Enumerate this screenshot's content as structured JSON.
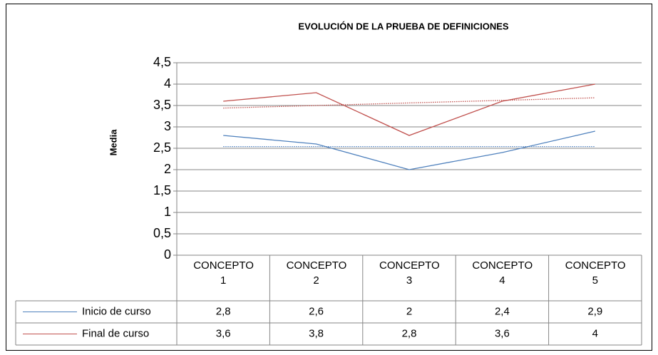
{
  "chart_data": {
    "type": "line",
    "title": "EVOLUCIÓN DE LA PRUEBA DE DEFINICIONES",
    "ylabel": "Media",
    "categories": [
      "CONCEPTO 1",
      "CONCEPTO 2",
      "CONCEPTO 3",
      "CONCEPTO 4",
      "CONCEPTO 5"
    ],
    "series": [
      {
        "name": "Inicio de curso",
        "color": "#4f81bd",
        "values": [
          2.8,
          2.6,
          2,
          2.4,
          2.9
        ],
        "value_labels": [
          "2,8",
          "2,6",
          "2",
          "2,4",
          "2,9"
        ],
        "trendline": true
      },
      {
        "name": "Final de curso",
        "color": "#c0504d",
        "values": [
          3.6,
          3.8,
          2.8,
          3.6,
          4
        ],
        "value_labels": [
          "3,6",
          "3,8",
          "2,8",
          "3,6",
          "4"
        ],
        "trendline": true
      }
    ],
    "ylim": [
      0,
      4.5
    ],
    "yticks": [
      0,
      {
        "value": 0.5,
        "label": "0,5"
      },
      1,
      {
        "value": 1.5,
        "label": "1,5"
      },
      2,
      {
        "value": 2.5,
        "label": "2,5"
      },
      3,
      {
        "value": 3.5,
        "label": "3,5"
      },
      4,
      {
        "value": 4.5,
        "label": "4,5"
      }
    ],
    "grid": true,
    "data_table": true
  }
}
